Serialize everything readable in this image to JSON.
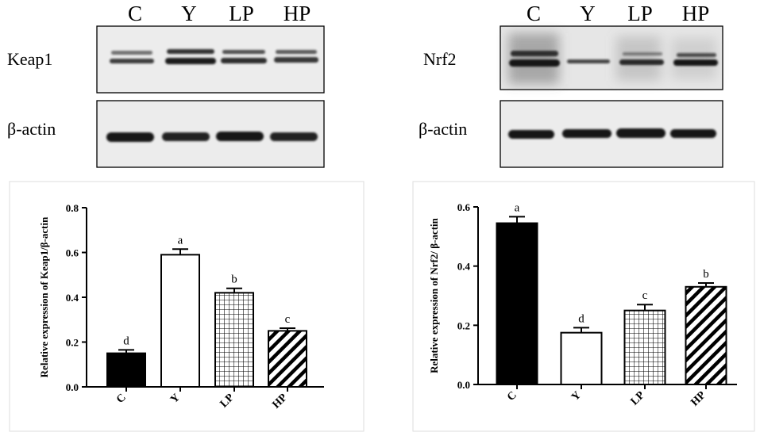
{
  "blots": [
    {
      "lanes": [
        "C",
        "Y",
        "LP",
        "HP"
      ],
      "target_label": "Keap1",
      "control_label": "β-actin"
    },
    {
      "lanes": [
        "C",
        "Y",
        "LP",
        "HP"
      ],
      "target_label": "Nrf2",
      "control_label": "β-actin"
    }
  ],
  "chart_data": [
    {
      "type": "bar",
      "categories": [
        "C",
        "Y",
        "LP",
        "HP"
      ],
      "values": [
        0.15,
        0.59,
        0.42,
        0.25
      ],
      "errors": [
        0.015,
        0.025,
        0.02,
        0.012
      ],
      "sig_letters": [
        "d",
        "a",
        "b",
        "c"
      ],
      "fills": [
        "solid-black",
        "white",
        "grid",
        "diagonal-hatch"
      ],
      "ylabel": "Relative expression of Keap1/β-actin",
      "xlabel": "",
      "ylim": [
        0,
        0.8
      ],
      "yticks": [
        "0.0",
        "0.2",
        "0.4",
        "0.6",
        "0.8"
      ],
      "grid": false
    },
    {
      "type": "bar",
      "categories": [
        "C",
        "Y",
        "LP",
        "HP"
      ],
      "values": [
        0.545,
        0.175,
        0.25,
        0.33
      ],
      "errors": [
        0.022,
        0.017,
        0.02,
        0.013
      ],
      "sig_letters": [
        "a",
        "d",
        "c",
        "b"
      ],
      "fills": [
        "solid-black",
        "white",
        "grid",
        "diagonal-hatch"
      ],
      "ylabel": "Relative expression of Nrf2/ β-actin",
      "xlabel": "",
      "ylim": [
        0,
        0.6
      ],
      "yticks": [
        "0.0",
        "0.2",
        "0.4",
        "0.6"
      ],
      "grid": false
    }
  ],
  "colors": {
    "ink": "#000000",
    "panel_border": "#dddddd",
    "background": "#ffffff"
  }
}
